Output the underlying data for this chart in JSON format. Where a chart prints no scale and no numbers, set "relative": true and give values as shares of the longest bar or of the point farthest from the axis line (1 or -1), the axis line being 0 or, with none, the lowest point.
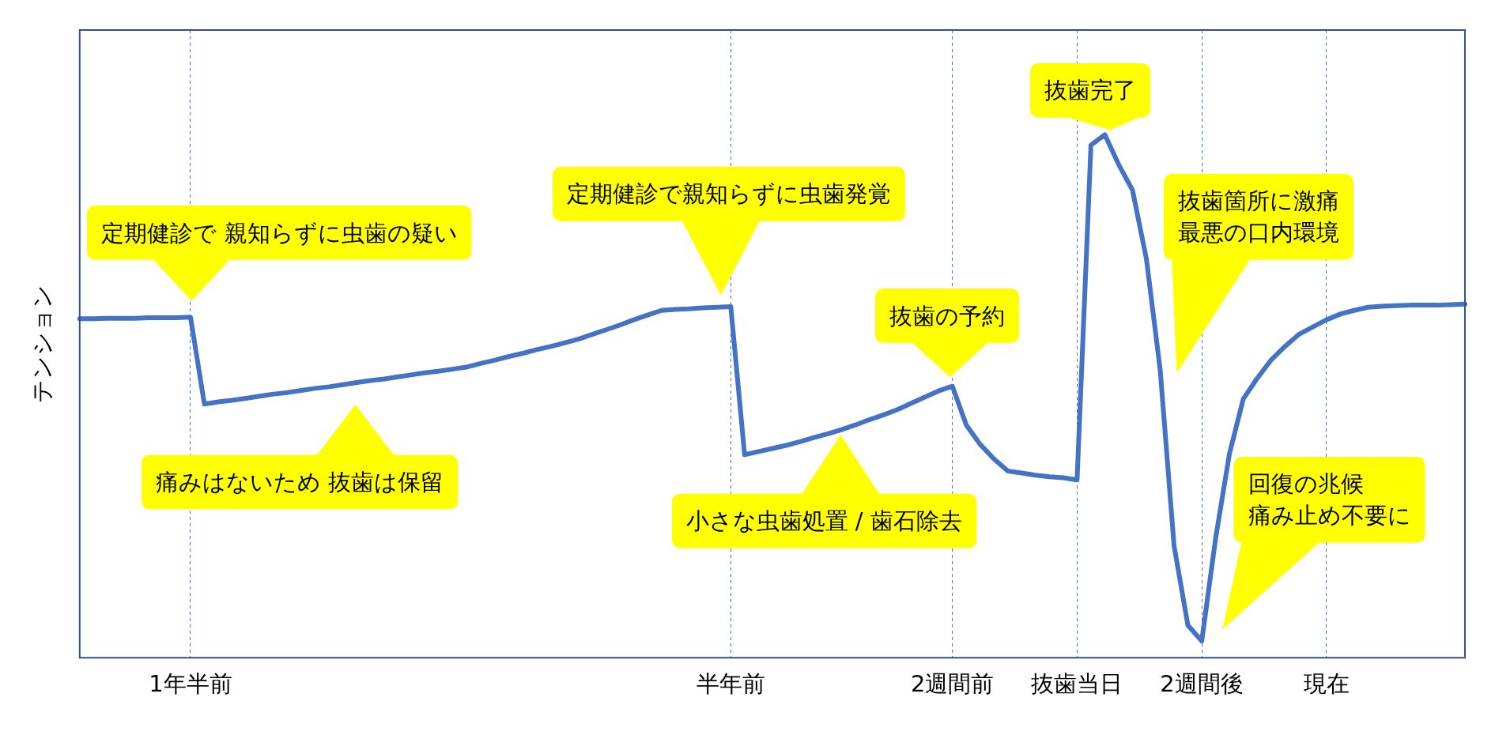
{
  "chart_data": {
    "type": "line",
    "relative": true,
    "ylabel": "テンション",
    "grid": "x",
    "legend": false,
    "marker": "none",
    "line_style": "solid",
    "categories": [
      null,
      null,
      null,
      null,
      null,
      null,
      null,
      null,
      "1年半前",
      null,
      null,
      null,
      null,
      null,
      null,
      null,
      null,
      null,
      null,
      null,
      null,
      null,
      null,
      null,
      null,
      null,
      null,
      null,
      null,
      null,
      null,
      null,
      null,
      null,
      null,
      null,
      null,
      null,
      null,
      null,
      null,
      null,
      null,
      null,
      null,
      null,
      null,
      "半年前",
      null,
      null,
      null,
      null,
      null,
      null,
      null,
      null,
      null,
      null,
      null,
      null,
      null,
      null,
      null,
      "2週間前",
      null,
      null,
      null,
      null,
      null,
      null,
      null,
      null,
      "抜歯当日",
      null,
      null,
      null,
      null,
      null,
      null,
      null,
      null,
      "2週間後",
      null,
      null,
      null,
      null,
      null,
      null,
      null,
      null,
      "現在",
      null,
      null,
      null,
      null,
      null,
      null,
      null,
      null,
      null,
      null
    ],
    "series": [
      {
        "color": "#4472c4",
        "values": [
          0.648,
          0.648,
          0.649,
          0.649,
          0.649,
          0.65,
          0.65,
          0.65,
          0.651,
          0.485,
          0.489,
          0.492,
          0.496,
          0.5,
          0.504,
          0.507,
          0.511,
          0.515,
          0.518,
          0.522,
          0.526,
          0.53,
          0.533,
          0.537,
          0.541,
          0.545,
          0.548,
          0.552,
          0.556,
          0.563,
          0.569,
          0.576,
          0.582,
          0.589,
          0.595,
          0.602,
          0.609,
          0.618,
          0.627,
          0.636,
          0.646,
          0.655,
          0.664,
          0.666,
          0.667,
          0.669,
          0.67,
          0.671,
          0.388,
          0.394,
          0.4,
          0.406,
          0.413,
          0.421,
          0.428,
          0.436,
          0.445,
          0.455,
          0.464,
          0.474,
          0.486,
          0.498,
          0.51,
          0.519,
          0.445,
          0.408,
          0.38,
          0.357,
          0.353,
          0.349,
          0.346,
          0.344,
          0.34,
          0.98,
          1,
          0.943,
          0.894,
          0.763,
          0.55,
          0.214,
          0.062,
          0.032,
          0.228,
          0.39,
          0.495,
          0.534,
          0.569,
          0.595,
          0.618,
          0.632,
          0.646,
          0.657,
          0.664,
          0.67,
          0.672,
          0.673,
          0.674,
          0.674,
          0.674,
          0.675,
          0.676
        ]
      }
    ],
    "annotations": [
      "定期健診で 親知らずに虫歯の疑い",
      "痛みはないため 抜歯は保留",
      "定期健診で親知らずに虫歯発覚",
      "抜歯の予約",
      "小さな虫歯処置 / 歯石除去",
      "抜歯完了",
      "抜歯箇所に激痛最悪の口内環境",
      "回復の兆候痛み止め不要に"
    ]
  }
}
